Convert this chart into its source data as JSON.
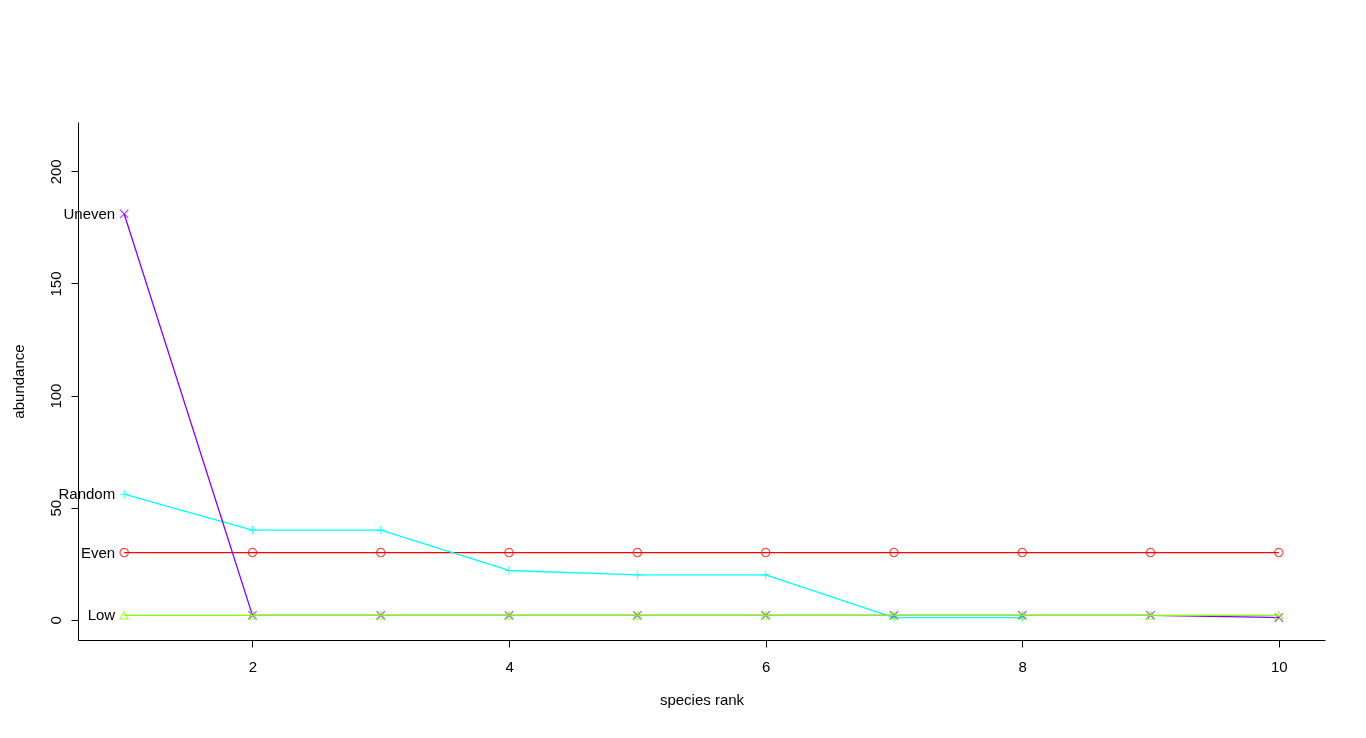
{
  "chart_data": {
    "type": "line",
    "xlabel": "species rank",
    "ylabel": "abundance",
    "x": [
      1,
      2,
      3,
      4,
      5,
      6,
      7,
      8,
      9,
      10
    ],
    "series": [
      {
        "name": "Even",
        "color": "#ff0000",
        "marker": "circle",
        "values": [
          30,
          30,
          30,
          30,
          30,
          30,
          30,
          30,
          30,
          30
        ]
      },
      {
        "name": "Random",
        "color": "#00ffff",
        "marker": "cross",
        "values": [
          56,
          40,
          40,
          22,
          20,
          20,
          1,
          1,
          null,
          null
        ]
      },
      {
        "name": "Uneven",
        "color": "#8000ff",
        "marker": "x",
        "values": [
          181,
          2,
          2,
          2,
          2,
          2,
          2,
          2,
          2,
          1
        ]
      },
      {
        "name": "Low",
        "color": "#80ff00",
        "marker": "triangle",
        "values": [
          2,
          2,
          2,
          2,
          2,
          2,
          2,
          2,
          2,
          2
        ]
      }
    ],
    "xlim": [
      0.64,
      10.36
    ],
    "xticks": [
      2,
      4,
      6,
      8,
      10
    ],
    "ylim": [
      -9,
      222
    ],
    "yticks": [
      0,
      50,
      100,
      150,
      200
    ],
    "grid": false,
    "legend": false
  }
}
